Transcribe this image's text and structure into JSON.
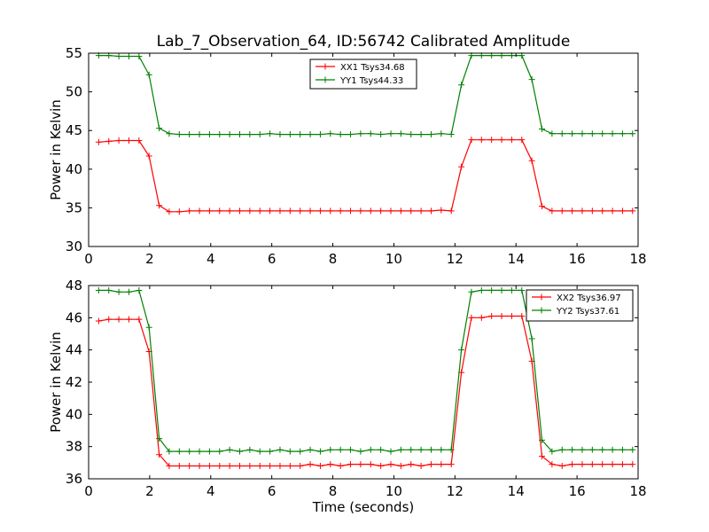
{
  "title": "Lab_7_Observation_64, ID:56742 Calibrated Amplitude",
  "chart_data": [
    {
      "type": "line",
      "ylabel": "Power in Kelvin",
      "xlabel": "",
      "xlim": [
        0,
        18
      ],
      "ylim": [
        30,
        55
      ],
      "xticks": [
        "0",
        "2",
        "4",
        "6",
        "8",
        "10",
        "12",
        "14",
        "16",
        "18"
      ],
      "yticks": [
        "30",
        "35",
        "40",
        "45",
        "50",
        "55"
      ],
      "legend_position": "top-center",
      "x": [
        0.33,
        0.66,
        0.99,
        1.32,
        1.65,
        1.98,
        2.31,
        2.64,
        2.97,
        3.3,
        3.63,
        3.96,
        4.29,
        4.62,
        4.95,
        5.28,
        5.61,
        5.94,
        6.27,
        6.6,
        6.93,
        7.26,
        7.59,
        7.92,
        8.25,
        8.58,
        8.91,
        9.24,
        9.57,
        9.9,
        10.23,
        10.56,
        10.89,
        11.22,
        11.55,
        11.88,
        12.21,
        12.54,
        12.87,
        13.2,
        13.53,
        13.86,
        14.19,
        14.52,
        14.85,
        15.18,
        15.51,
        15.84,
        16.17,
        16.5,
        16.83,
        17.16,
        17.49,
        17.82
      ],
      "series": [
        {
          "name": "XX1 Tsys34.68",
          "color": "#ff0000",
          "values": [
            43.5,
            43.6,
            43.7,
            43.7,
            43.7,
            41.7,
            35.3,
            34.5,
            34.5,
            34.6,
            34.6,
            34.6,
            34.6,
            34.6,
            34.6,
            34.6,
            34.6,
            34.6,
            34.6,
            34.6,
            34.6,
            34.6,
            34.6,
            34.6,
            34.6,
            34.6,
            34.6,
            34.6,
            34.6,
            34.6,
            34.6,
            34.6,
            34.6,
            34.6,
            34.7,
            34.6,
            40.3,
            43.8,
            43.8,
            43.8,
            43.8,
            43.8,
            43.8,
            41.1,
            35.2,
            34.6,
            34.6,
            34.6,
            34.6,
            34.6,
            34.6,
            34.6,
            34.6,
            34.6
          ]
        },
        {
          "name": "YY1 Tsys44.33",
          "color": "#008000",
          "values": [
            54.7,
            54.7,
            54.6,
            54.6,
            54.6,
            52.2,
            45.3,
            44.6,
            44.5,
            44.5,
            44.5,
            44.5,
            44.5,
            44.5,
            44.5,
            44.5,
            44.5,
            44.6,
            44.5,
            44.5,
            44.5,
            44.5,
            44.5,
            44.6,
            44.5,
            44.5,
            44.6,
            44.6,
            44.5,
            44.6,
            44.6,
            44.5,
            44.5,
            44.5,
            44.6,
            44.5,
            50.9,
            54.7,
            54.7,
            54.7,
            54.7,
            54.7,
            54.7,
            51.6,
            45.2,
            44.6,
            44.6,
            44.6,
            44.6,
            44.6,
            44.6,
            44.6,
            44.6,
            44.6
          ]
        }
      ]
    },
    {
      "type": "line",
      "ylabel": "Power in Kelvin",
      "xlabel": "Time (seconds)",
      "xlim": [
        0,
        18
      ],
      "ylim": [
        36,
        48
      ],
      "xticks": [
        "0",
        "2",
        "4",
        "6",
        "8",
        "10",
        "12",
        "14",
        "16",
        "18"
      ],
      "yticks": [
        "36",
        "38",
        "40",
        "42",
        "44",
        "46",
        "48"
      ],
      "legend_position": "top-right",
      "x": [
        0.33,
        0.66,
        0.99,
        1.32,
        1.65,
        1.98,
        2.31,
        2.64,
        2.97,
        3.3,
        3.63,
        3.96,
        4.29,
        4.62,
        4.95,
        5.28,
        5.61,
        5.94,
        6.27,
        6.6,
        6.93,
        7.26,
        7.59,
        7.92,
        8.25,
        8.58,
        8.91,
        9.24,
        9.57,
        9.9,
        10.23,
        10.56,
        10.89,
        11.22,
        11.55,
        11.88,
        12.21,
        12.54,
        12.87,
        13.2,
        13.53,
        13.86,
        14.19,
        14.52,
        14.85,
        15.18,
        15.51,
        15.84,
        16.17,
        16.5,
        16.83,
        17.16,
        17.49,
        17.82
      ],
      "series": [
        {
          "name": "XX2 Tsys36.97",
          "color": "#ff0000",
          "values": [
            45.8,
            45.9,
            45.9,
            45.9,
            45.9,
            43.9,
            37.5,
            36.8,
            36.8,
            36.8,
            36.8,
            36.8,
            36.8,
            36.8,
            36.8,
            36.8,
            36.8,
            36.8,
            36.8,
            36.8,
            36.8,
            36.9,
            36.8,
            36.9,
            36.8,
            36.9,
            36.9,
            36.9,
            36.8,
            36.9,
            36.8,
            36.9,
            36.8,
            36.9,
            36.9,
            36.9,
            42.6,
            46.0,
            46.0,
            46.1,
            46.1,
            46.1,
            46.1,
            43.3,
            37.4,
            36.9,
            36.8,
            36.9,
            36.9,
            36.9,
            36.9,
            36.9,
            36.9,
            36.9
          ]
        },
        {
          "name": "YY2 Tsys37.61",
          "color": "#008000",
          "values": [
            47.7,
            47.7,
            47.6,
            47.6,
            47.7,
            45.4,
            38.5,
            37.7,
            37.7,
            37.7,
            37.7,
            37.7,
            37.7,
            37.8,
            37.7,
            37.8,
            37.7,
            37.7,
            37.8,
            37.7,
            37.7,
            37.8,
            37.7,
            37.8,
            37.8,
            37.8,
            37.7,
            37.8,
            37.8,
            37.7,
            37.8,
            37.8,
            37.8,
            37.8,
            37.8,
            37.8,
            44.0,
            47.6,
            47.7,
            47.7,
            47.7,
            47.7,
            47.7,
            44.7,
            38.4,
            37.7,
            37.8,
            37.8,
            37.8,
            37.8,
            37.8,
            37.8,
            37.8,
            37.8
          ]
        }
      ]
    }
  ]
}
